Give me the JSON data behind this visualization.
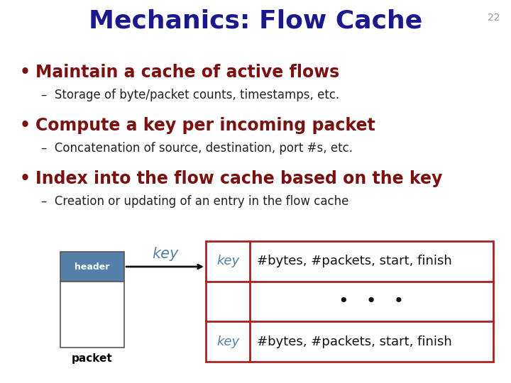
{
  "title": "Mechanics: Flow Cache",
  "title_color": "#1a1a8c",
  "slide_number": "22",
  "background_color": "#ffffff",
  "bullet_color": "#7b1010",
  "sub_bullet_color": "#222222",
  "bullets": [
    {
      "text": "Maintain a cache of active flows",
      "sub": "Storage of byte/packet counts, timestamps, etc."
    },
    {
      "text": "Compute a key per incoming packet",
      "sub": "Concatenation of source, destination, port #s, etc."
    },
    {
      "text": "Index into the flow cache based on the key",
      "sub": "Creation or updating of an entry in the flow cache"
    }
  ],
  "header_box_color": "#5580aa",
  "header_box_text": "header",
  "header_box_text_color": "#ffffff",
  "key_arrow_text": "key",
  "key_arrow_color": "#5580aa",
  "table_border_color": "#aa2222",
  "table_key_color": "#5580aa",
  "table_row1_key": "key",
  "table_row1_val": "#bytes, #packets, start, finish",
  "table_row2_key": "",
  "table_row2_val": "•   •   •",
  "table_row3_key": "key",
  "table_row3_val": "#bytes, #packets, start, finish"
}
